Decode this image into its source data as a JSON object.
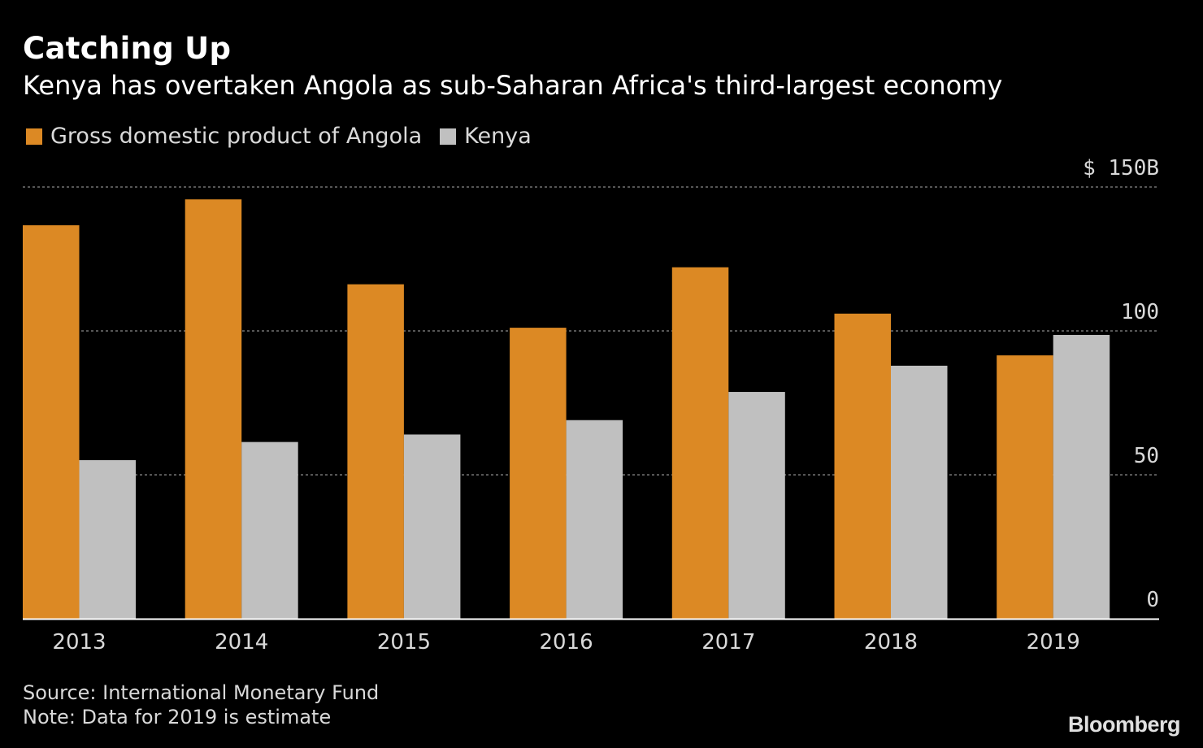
{
  "chart_data": {
    "type": "bar",
    "title": "Catching Up",
    "subtitle": "Kenya has overtaken Angola as sub-Saharan Africa's third-largest economy",
    "categories": [
      "2013",
      "2014",
      "2015",
      "2016",
      "2017",
      "2018",
      "2019"
    ],
    "series": [
      {
        "name": "Gross domestic product of Angola",
        "color": "#dc8924",
        "values": [
          136.7,
          145.7,
          116.2,
          101.1,
          122.1,
          106.0,
          91.5
        ]
      },
      {
        "name": "Kenya",
        "color": "#c0c0c0",
        "values": [
          55.1,
          61.4,
          64.0,
          69.0,
          78.8,
          87.9,
          98.6
        ]
      }
    ],
    "yticks": [
      {
        "value": 0,
        "label": "0"
      },
      {
        "value": 50,
        "label": "50"
      },
      {
        "value": 100,
        "label": "100"
      },
      {
        "value": 150,
        "label": "$ 150B"
      }
    ],
    "ylim": [
      0,
      150
    ],
    "xlabel": "",
    "ylabel": "",
    "grid": true,
    "legend_position": "top-left"
  },
  "footer": {
    "source": "Source: International Monetary Fund",
    "note": "Note: Data for 2019 is estimate",
    "brand": "Bloomberg"
  },
  "colors": {
    "background": "#000000",
    "grid": "#8a8a8a",
    "axis": "#ffffff",
    "tick_text": "#d9d9d9"
  }
}
